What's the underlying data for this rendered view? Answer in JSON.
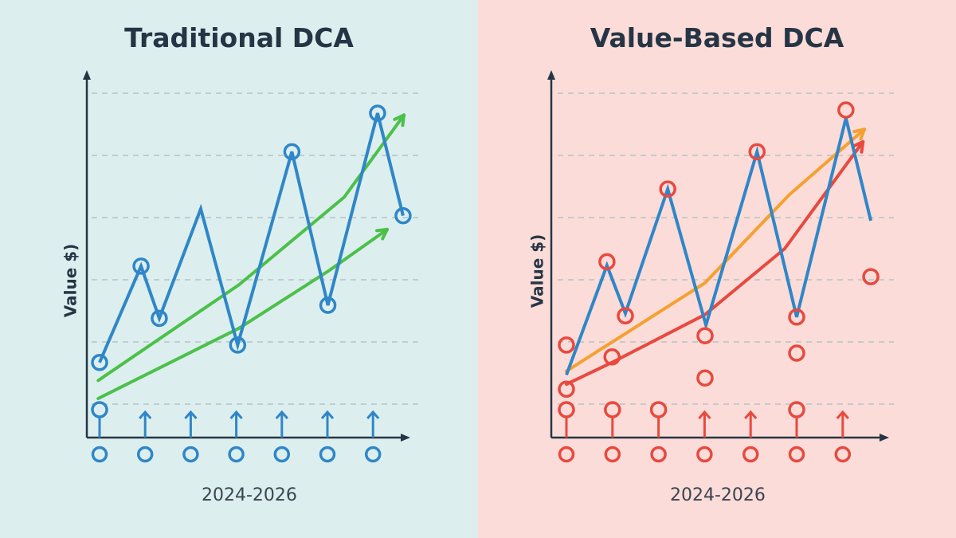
{
  "colors": {
    "left_background": "#dcefee",
    "right_background": "#fbdcd8",
    "price_line": "#2f86c8",
    "traditional_marker": "#2f86c8",
    "traditional_trend": "#4cc04a",
    "value_marker": "#e8493f",
    "value_trend_upper": "#f5a030",
    "value_trend_lower": "#e8493f",
    "axis": "#263545",
    "grid": "#b5c4c6"
  },
  "chart_data": [
    {
      "type": "line",
      "title": "Traditional DCA",
      "xlabel": "2024-2026",
      "ylabel": "Value $)",
      "grid": true,
      "gridlines_y": [
        1,
        2,
        3,
        4,
        5,
        6
      ],
      "xlim": [
        -0.3,
        7.0
      ],
      "ylim": [
        0.45,
        6.35
      ],
      "investment_ticks": [
        0,
        1,
        2,
        3,
        4,
        5,
        6
      ],
      "price_series": {
        "x": [
          0,
          0.91,
          1.31,
          2.22,
          3.03,
          4.22,
          5.01,
          6.1,
          6.66
        ],
        "y": [
          1.67,
          3.22,
          2.38,
          4.14,
          1.95,
          5.06,
          2.59,
          5.68,
          4.03
        ],
        "marked": [
          true,
          true,
          true,
          false,
          true,
          true,
          true,
          true,
          true
        ]
      },
      "trend_series": [
        {
          "x": [
            -0.03,
            3.06,
            5.37,
            6.68
          ],
          "y": [
            1.38,
            2.92,
            4.33,
            5.65
          ]
        },
        {
          "x": [
            -0.03,
            3.06,
            5.02,
            6.31
          ],
          "y": [
            1.09,
            2.22,
            3.14,
            3.81
          ]
        }
      ],
      "purchase_markers": [
        {
          "x": 0,
          "kind": "circle",
          "y": 0.91
        },
        {
          "x": 1,
          "kind": "arrow"
        },
        {
          "x": 2,
          "kind": "arrow"
        },
        {
          "x": 3,
          "kind": "arrow"
        },
        {
          "x": 4,
          "kind": "arrow"
        },
        {
          "x": 5,
          "kind": "arrow"
        },
        {
          "x": 6,
          "kind": "arrow"
        }
      ],
      "extra_points": []
    },
    {
      "type": "line",
      "title": "Value-Based DCA",
      "xlabel": "2024-2026",
      "ylabel": "Value $)",
      "grid": true,
      "gridlines_y": [
        1,
        2,
        3,
        4,
        5,
        6
      ],
      "xlim": [
        -0.3,
        7.0
      ],
      "ylim": [
        0.45,
        6.35
      ],
      "investment_ticks": [
        0,
        1,
        2,
        3,
        4,
        5,
        6
      ],
      "price_series": {
        "x": [
          0,
          0.88,
          1.28,
          2.2,
          3.03,
          4.14,
          5.0,
          6.07,
          6.61
        ],
        "y": [
          1.47,
          3.23,
          2.46,
          4.46,
          2.27,
          5.06,
          2.4,
          5.6,
          3.95
        ],
        "marked": [
          false,
          false,
          false,
          false,
          false,
          false,
          false,
          false,
          false
        ]
      },
      "trend_series": [
        {
          "x": [
            0,
            3.01,
            4.83,
            6.47
          ],
          "y": [
            1.53,
            2.95,
            4.36,
            5.42
          ]
        },
        {
          "x": [
            0,
            0.99,
            3.01,
            4.74,
            6.44
          ],
          "y": [
            1.32,
            1.67,
            2.44,
            3.5,
            5.22
          ]
        }
      ],
      "purchase_markers": [
        {
          "x": 0,
          "kind": "circle",
          "y": 0.91
        },
        {
          "x": 1,
          "kind": "circle",
          "y": 0.91
        },
        {
          "x": 2,
          "kind": "circle",
          "y": 0.91
        },
        {
          "x": 3,
          "kind": "arrow"
        },
        {
          "x": 4,
          "kind": "arrow"
        },
        {
          "x": 5,
          "kind": "circle",
          "y": 0.91
        },
        {
          "x": 6,
          "kind": "arrow"
        }
      ],
      "extra_points": [
        {
          "x": 0,
          "y": 1.95
        },
        {
          "x": 0,
          "y": 1.24
        },
        {
          "x": 0.99,
          "y": 1.76
        },
        {
          "x": 0.88,
          "y": 3.29
        },
        {
          "x": 1.28,
          "y": 2.42
        },
        {
          "x": 2.2,
          "y": 4.46
        },
        {
          "x": 3.01,
          "y": 2.1
        },
        {
          "x": 3.01,
          "y": 1.42
        },
        {
          "x": 4.14,
          "y": 5.06
        },
        {
          "x": 5.0,
          "y": 2.4
        },
        {
          "x": 5.0,
          "y": 1.82
        },
        {
          "x": 6.07,
          "y": 5.73
        },
        {
          "x": 6.61,
          "y": 3.05
        }
      ]
    }
  ]
}
